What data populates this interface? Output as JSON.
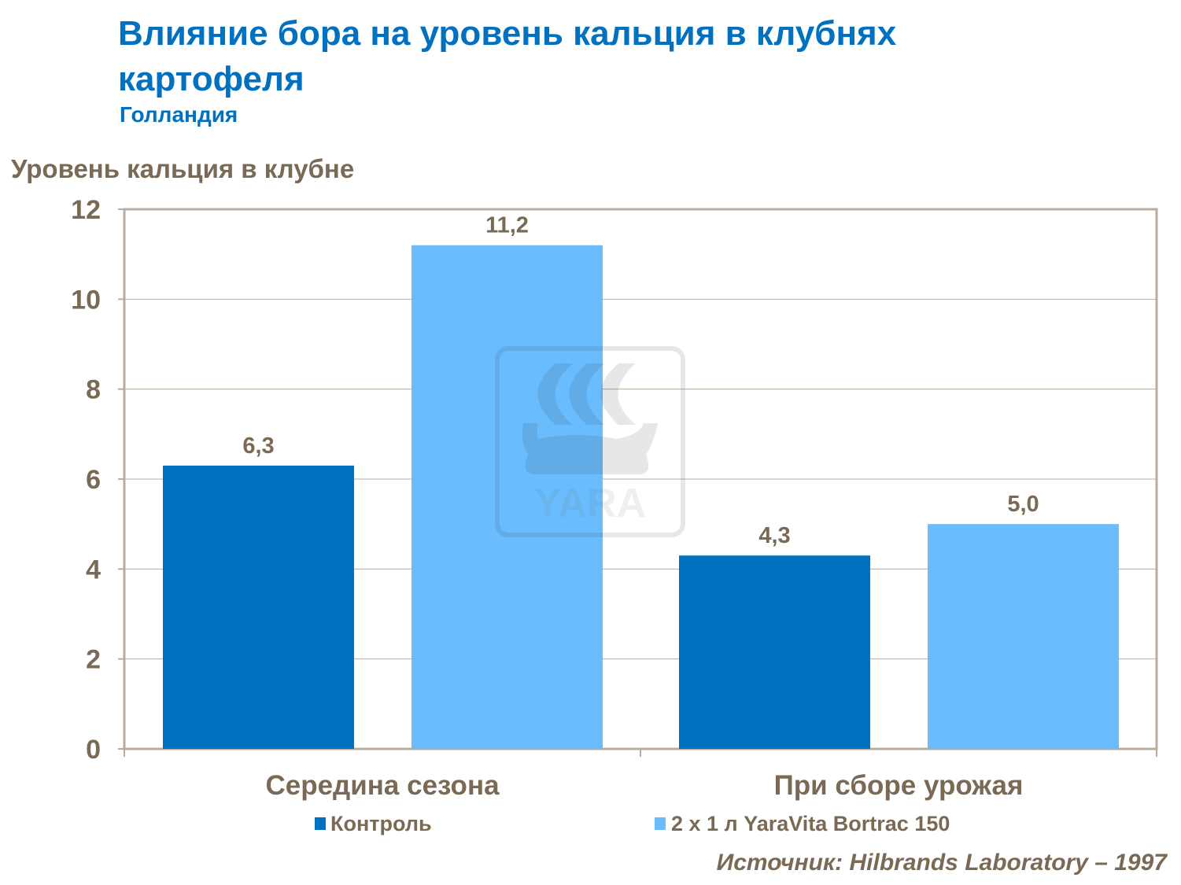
{
  "chart_data": {
    "type": "bar",
    "title": "Влияние бора на уровень кальция в клубнях картофеля",
    "subtitle": "Голландия",
    "ylabel": "Уровень кальция в клубне",
    "xlabel": "",
    "categories": [
      "Середина сезона",
      "При сборе урожая"
    ],
    "series": [
      {
        "name": "Контроль",
        "values": [
          6.3,
          4.3
        ],
        "labels": [
          "6,3",
          "4,3"
        ],
        "color": "#0070c0"
      },
      {
        "name": "2 x 1 л YaraVita Bortrac 150",
        "values": [
          11.2,
          5.0
        ],
        "labels": [
          "11,2",
          "5,0"
        ],
        "color": "#69bdff"
      }
    ],
    "ylim": [
      0,
      12
    ],
    "yticks": [
      0,
      2,
      4,
      6,
      8,
      10,
      12
    ],
    "grid": true,
    "legend": "bottom",
    "source": "Источник: Hilbrands Laboratory – 1997",
    "watermark": "YARA"
  }
}
